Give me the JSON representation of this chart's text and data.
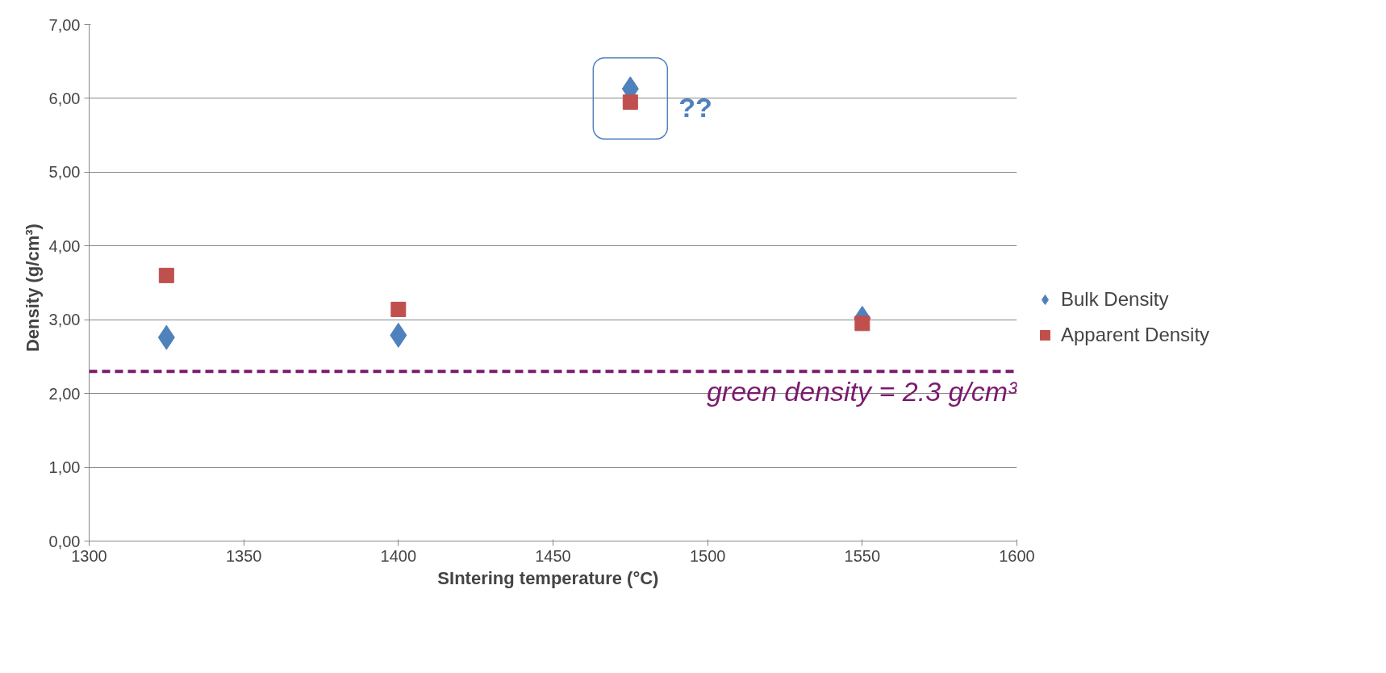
{
  "chart_data": {
    "type": "scatter",
    "xlabel": "SIntering temperature   (°C)",
    "ylabel": "Density   (g/cm³)",
    "x": [
      1325,
      1400,
      1475,
      1550
    ],
    "series": [
      {
        "name": "Bulk Density",
        "color": "#4f81bd",
        "marker": "diamond",
        "values": [
          2.76,
          2.79,
          6.13,
          3.02
        ]
      },
      {
        "name": "Apparent Density",
        "color": "#c0504d",
        "marker": "square",
        "values": [
          3.6,
          3.14,
          5.95,
          2.95
        ]
      }
    ],
    "xlim": [
      1300,
      1600
    ],
    "xticks": [
      1300,
      1350,
      1400,
      1450,
      1500,
      1550,
      1600
    ],
    "ylim": [
      0,
      7
    ],
    "yticks": [
      {
        "value": 0,
        "label": "0,00"
      },
      {
        "value": 1,
        "label": "1,00"
      },
      {
        "value": 2,
        "label": "2,00"
      },
      {
        "value": 3,
        "label": "3,00"
      },
      {
        "value": 4,
        "label": "4,00"
      },
      {
        "value": 5,
        "label": "5,00"
      },
      {
        "value": 6,
        "label": "6,00"
      },
      {
        "value": 7,
        "label": "7,00"
      }
    ],
    "ref_lines": [
      {
        "axis": "y",
        "value": 2.3,
        "label": "green density = 2.3 g/cm³",
        "color": "#7b1a6e",
        "line_style": "dashed"
      }
    ],
    "annotations": [
      {
        "text": "??",
        "x": 1475,
        "y": 6.0
      }
    ],
    "grid": "y",
    "legend": "right"
  }
}
